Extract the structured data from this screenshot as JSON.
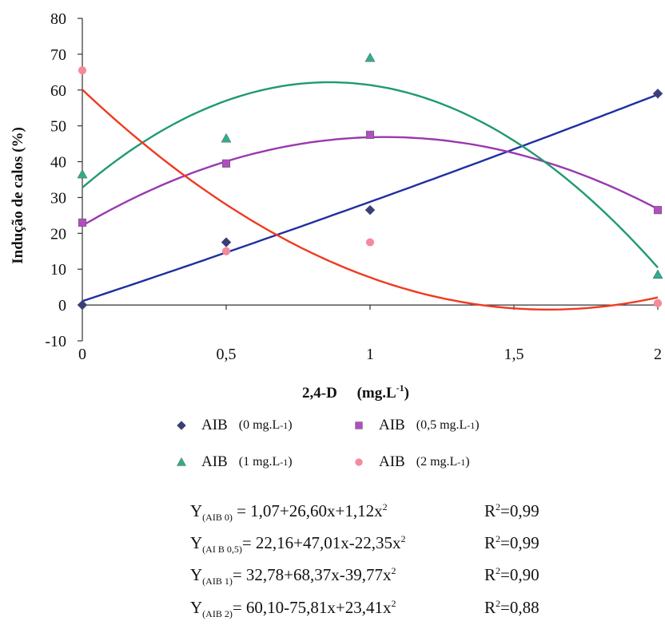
{
  "chart_data": {
    "type": "scatter",
    "xlabel": "2,4-D",
    "xlabel_unit": "(mg.L",
    "xlabel_unit_sup": "-1",
    "xlabel_unit_end": ")",
    "ylabel": "Indução de calos (%)",
    "ylim": [
      -10,
      80
    ],
    "xlim": [
      0,
      2
    ],
    "y_ticks": [
      "80",
      "70",
      "60",
      "50",
      "40",
      "30",
      "20",
      "10",
      "0",
      "-10"
    ],
    "y_tick_values": [
      80,
      70,
      60,
      50,
      40,
      30,
      20,
      10,
      0,
      -10
    ],
    "x_ticks": [
      "0",
      "0,5",
      "1",
      "1,5",
      "2"
    ],
    "x_tick_values": [
      0,
      0.5,
      1,
      1.5,
      2
    ],
    "x": [
      0,
      0.5,
      1,
      2
    ],
    "series": [
      {
        "name": "AIB (0 mg.L-1)",
        "legend_main": "AIB",
        "legend_unit": "(0 mg.L",
        "legend_sup": "-1",
        "legend_end": ")",
        "marker": "diamond",
        "marker_color": "#3a3f7a",
        "line_color": "#1f2fa0",
        "values": [
          0,
          17.5,
          26.5,
          59
        ],
        "coef": [
          1.07,
          26.6,
          1.12
        ]
      },
      {
        "name": "AIB (0,5 mg.L-1)",
        "legend_main": "AIB",
        "legend_unit": "(0,5 mg.L",
        "legend_sup": "-1",
        "legend_end": ")",
        "marker": "square",
        "marker_color": "#b04fc0",
        "line_color": "#9a38b0",
        "values": [
          23,
          39.5,
          47.5,
          26.5
        ],
        "coef": [
          22.16,
          47.01,
          -22.35
        ]
      },
      {
        "name": "AIB (1 mg.L-1)",
        "legend_main": "AIB",
        "legend_unit": "(1 mg.L",
        "legend_sup": "-1",
        "legend_end": ")",
        "marker": "triangle",
        "marker_color": "#2fae8e",
        "line_color": "#1f9a6e",
        "values": [
          36.5,
          46.5,
          69,
          8.5
        ],
        "coef": [
          32.78,
          68.37,
          -39.77
        ]
      },
      {
        "name": "AIB (2 mg.L-1)",
        "legend_main": "AIB",
        "legend_unit": "(2  mg.L",
        "legend_sup": "-1",
        "legend_end": ")",
        "marker": "circle",
        "marker_color": "#f48a9a",
        "line_color": "#f03a20",
        "values": [
          65.5,
          15,
          17.5,
          0.5
        ],
        "coef": [
          60.1,
          -75.81,
          23.41
        ]
      }
    ],
    "equations": [
      {
        "y": "Y",
        "sub": "(AIB 0)",
        "rhs": " = 1,07+26,60x+1,12x",
        "sup": "2",
        "r": "R",
        "rsup": "2",
        "rval": "=0,99"
      },
      {
        "y": "Y",
        "sub": "(AI B 0,5)",
        "rhs": "= 22,16+47,01x-22,35x",
        "sup": "2",
        "r": "R",
        "rsup": "2",
        "rval": "=0,99"
      },
      {
        "y": "Y",
        "sub": "(AIB 1)",
        "rhs": "= 32,78+68,37x-39,77x",
        "sup": "2",
        "r": "R",
        "rsup": "2",
        "rval": "=0,90"
      },
      {
        "y": "Y",
        "sub": "(AIB 2)",
        "rhs": "= 60,10-75,81x+23,41x",
        "sup": "2",
        "r": "R",
        "rsup": "2",
        "rval": "=0,88"
      }
    ],
    "grid": false,
    "legend_position": "bottom"
  }
}
